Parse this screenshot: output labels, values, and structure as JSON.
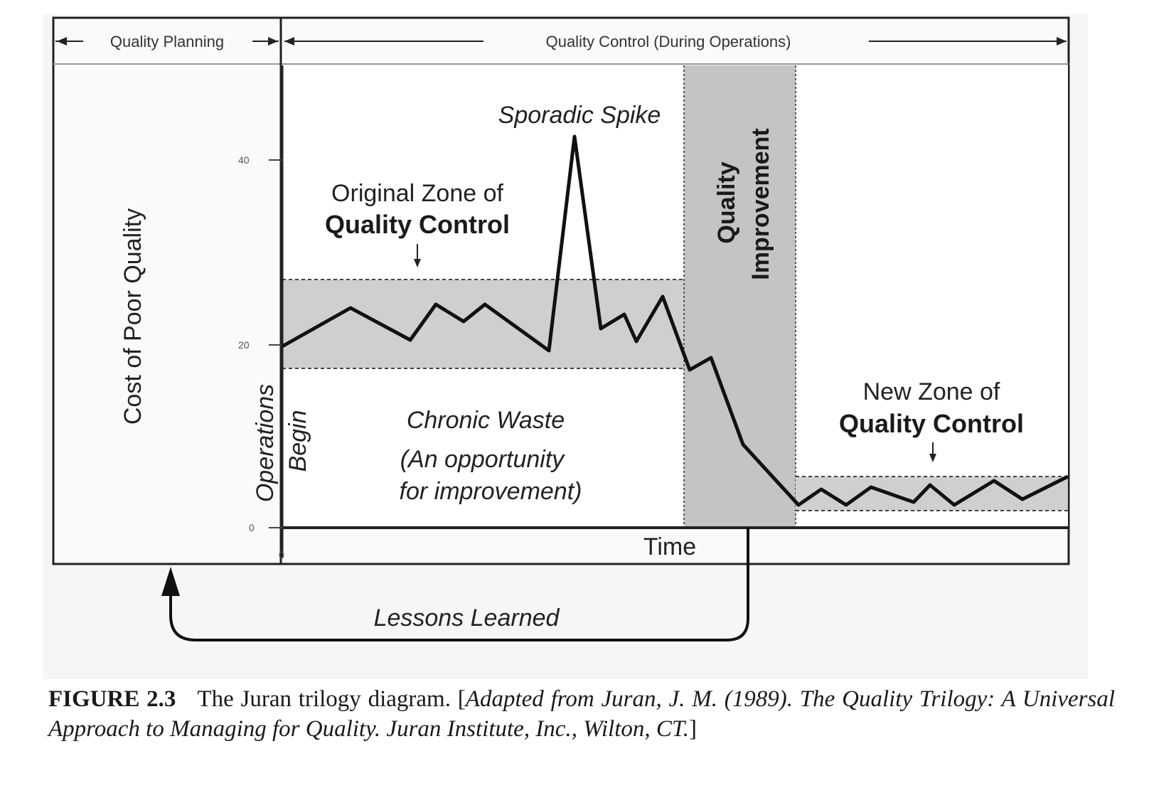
{
  "header": {
    "quality_planning": "Quality Planning",
    "quality_control": "Quality Control (During Operations)"
  },
  "axes": {
    "y_label": "Cost of Poor Quality",
    "x_label": "Time",
    "y_ticks": [
      "40",
      "20",
      "0"
    ],
    "x_tick": "0"
  },
  "labels": {
    "sporadic_spike": "Sporadic Spike",
    "original_zone_line1": "Original Zone of",
    "original_zone_line2": "Quality Control",
    "quality_improvement_line1": "Quality",
    "quality_improvement_line2": "Improvement",
    "new_zone_line1": "New Zone of",
    "new_zone_line2": "Quality Control",
    "chronic_waste": "Chronic Waste",
    "opportunity_line1": "(An opportunity",
    "opportunity_line2": "for improvement)",
    "operations": "Operations",
    "begin": "Begin",
    "lessons_learned": "Lessons Learned"
  },
  "caption": {
    "figure_number": "FIGURE 2.3",
    "text": "The Juran trilogy diagram. [",
    "reference": "Adapted from Juran, J. M. (1989). The Quality Trilogy: A Universal Approach to Managing for Quality. Juran Institute, Inc., Wilton, CT.",
    "closing": "]"
  },
  "colors": {
    "zone_fill": "#cfcfcf",
    "improvement_fill": "#c4c4c4",
    "line": "#111111",
    "frame": "#222222"
  }
}
